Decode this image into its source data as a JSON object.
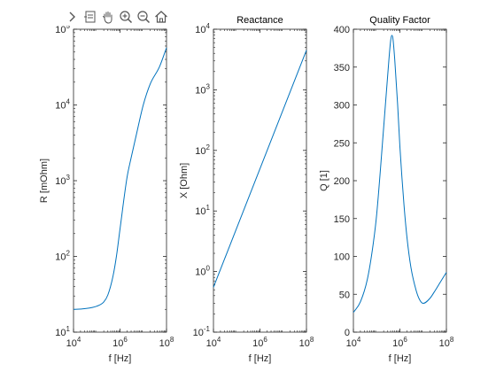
{
  "colors": {
    "line": "#0072BD",
    "axis": "#262626",
    "background": "#ffffff"
  },
  "toolbar": {
    "icons": [
      "chevron-right-icon",
      "data-tips-icon",
      "pan-hand-icon",
      "zoom-in-icon",
      "zoom-out-icon",
      "home-icon"
    ]
  },
  "chart_data": [
    {
      "type": "line",
      "title": "",
      "xlabel": "f [Hz]",
      "ylabel": "R [mOhm]",
      "xscale": "log",
      "yscale": "log",
      "xlim": [
        10000,
        100000000
      ],
      "ylim": [
        10,
        100000
      ],
      "xticks": [
        10000,
        1000000,
        100000000
      ],
      "xtick_labels": [
        {
          "base": "10",
          "exp": "4"
        },
        {
          "base": "10",
          "exp": "6"
        },
        {
          "base": "10",
          "exp": "8"
        }
      ],
      "yticks": [
        10,
        100,
        1000,
        10000,
        100000
      ],
      "ytick_labels": [
        {
          "base": "10",
          "exp": "1"
        },
        {
          "base": "10",
          "exp": "2"
        },
        {
          "base": "10",
          "exp": "3"
        },
        {
          "base": "10",
          "exp": "4"
        },
        {
          "base": "10",
          "exp": "5"
        }
      ],
      "grid": false,
      "series": [
        {
          "x": [
            10000,
            30000,
            100000,
            200000,
            300000,
            500000,
            700000,
            1000000,
            2000000,
            3000000,
            5000000,
            10000000,
            20000000,
            50000000,
            100000000
          ],
          "y": [
            20,
            20.4,
            22,
            25,
            31,
            55,
            100,
            230,
            1100,
            2000,
            4000,
            10000,
            19000,
            32000,
            57000
          ]
        }
      ]
    },
    {
      "type": "line",
      "title": "Reactance",
      "xlabel": "f [Hz]",
      "ylabel": "X [Ohm]",
      "xscale": "log",
      "yscale": "log",
      "xlim": [
        10000,
        100000000
      ],
      "ylim": [
        0.1,
        10000
      ],
      "xticks": [
        10000,
        1000000,
        100000000
      ],
      "xtick_labels": [
        {
          "base": "10",
          "exp": "4"
        },
        {
          "base": "10",
          "exp": "6"
        },
        {
          "base": "10",
          "exp": "8"
        }
      ],
      "yticks": [
        0.1,
        1,
        10,
        100,
        1000,
        10000
      ],
      "ytick_labels": [
        {
          "base": "10",
          "exp": "-1"
        },
        {
          "base": "10",
          "exp": "0"
        },
        {
          "base": "10",
          "exp": "1"
        },
        {
          "base": "10",
          "exp": "2"
        },
        {
          "base": "10",
          "exp": "3"
        },
        {
          "base": "10",
          "exp": "4"
        }
      ],
      "grid": false,
      "series": [
        {
          "x": [
            10000,
            100000000
          ],
          "y": [
            0.55,
            4500
          ]
        }
      ]
    },
    {
      "type": "line",
      "title": "Quality Factor",
      "xlabel": "f [Hz]",
      "ylabel": "Q [1]",
      "xscale": "log",
      "yscale": "linear",
      "xlim": [
        10000,
        100000000
      ],
      "ylim": [
        0,
        400
      ],
      "xticks": [
        10000,
        1000000,
        100000000
      ],
      "xtick_labels": [
        {
          "base": "10",
          "exp": "4"
        },
        {
          "base": "10",
          "exp": "6"
        },
        {
          "base": "10",
          "exp": "8"
        }
      ],
      "yticks": [
        0,
        50,
        100,
        150,
        200,
        250,
        300,
        350,
        400
      ],
      "ytick_labels": [
        "0",
        "50",
        "100",
        "150",
        "200",
        "250",
        "300",
        "350",
        "400"
      ],
      "grid": false,
      "series": [
        {
          "x": [
            10000,
            20000,
            40000,
            70000,
            100000,
            200000,
            300000,
            400000,
            450000,
            500000,
            600000,
            800000,
            1000000,
            1500000,
            2000000,
            3000000,
            5000000,
            7000000,
            10000000,
            20000000,
            30000000,
            50000000,
            100000000
          ],
          "y": [
            26,
            40,
            70,
            115,
            155,
            270,
            340,
            385,
            392,
            388,
            360,
            300,
            245,
            168,
            126,
            85,
            55,
            43,
            38,
            45,
            53,
            64,
            79
          ]
        }
      ]
    }
  ]
}
